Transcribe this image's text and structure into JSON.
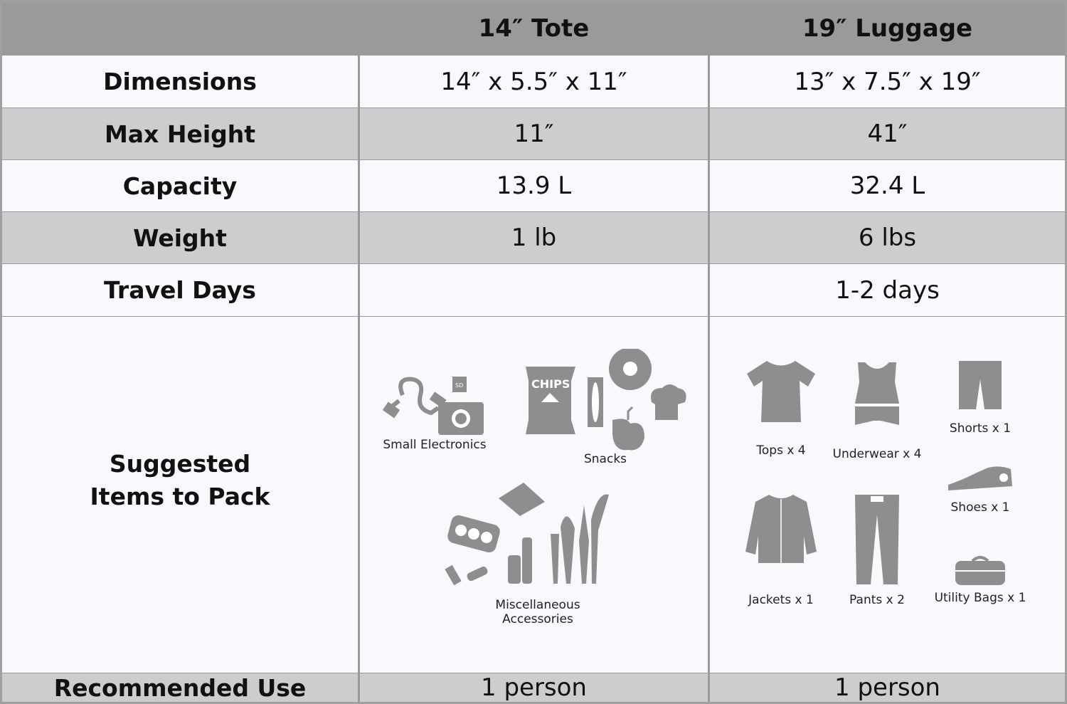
{
  "columns": [
    "",
    "14″ Tote",
    "19″ Luggage"
  ],
  "rows": [
    {
      "label": "Dimensions",
      "tote": "14″ x 5.5″ x 11″",
      "luggage": "13″ x 7.5″ x 19″"
    },
    {
      "label": "Max Height",
      "tote": "11″",
      "luggage": "41″"
    },
    {
      "label": "Capacity",
      "tote": "13.9 L",
      "luggage": "32.4 L"
    },
    {
      "label": "Weight",
      "tote": "1 lb",
      "luggage": "6 lbs"
    },
    {
      "label": "Travel Days",
      "tote": "",
      "luggage": "1-2 days"
    },
    {
      "label": "Recommended Use",
      "tote": "1 person",
      "luggage": "1 person"
    }
  ],
  "suggested": {
    "label_line1": "Suggested",
    "label_line2": "Items to Pack",
    "tote": [
      {
        "label": "Small Electronics",
        "icon": "electronics-icon"
      },
      {
        "label": "Snacks",
        "icon": "snacks-icon",
        "chips_text": "CHIPS",
        "sd_text": "SD"
      },
      {
        "label_line1": "Miscellaneous",
        "label_line2": "Accessories",
        "icon": "cosmetics-icon"
      }
    ],
    "luggage": [
      {
        "label": "Tops x 4",
        "icon": "tshirt-icon"
      },
      {
        "label": "Underwear x 4",
        "icon": "underwear-icon"
      },
      {
        "label": "Shorts x 1",
        "icon": "shorts-icon"
      },
      {
        "label": "Shoes x 1",
        "icon": "shoe-icon"
      },
      {
        "label": "Jackets x 1",
        "icon": "jacket-icon"
      },
      {
        "label": "Pants x 2",
        "icon": "pants-icon"
      },
      {
        "label": "Utility Bags x 1",
        "icon": "bag-icon"
      }
    ]
  },
  "colors": {
    "header": "#9a9a9a",
    "row_light": "#f8f9fc",
    "row_dark": "#cdcdd0",
    "icon": "#8e8e8e"
  }
}
